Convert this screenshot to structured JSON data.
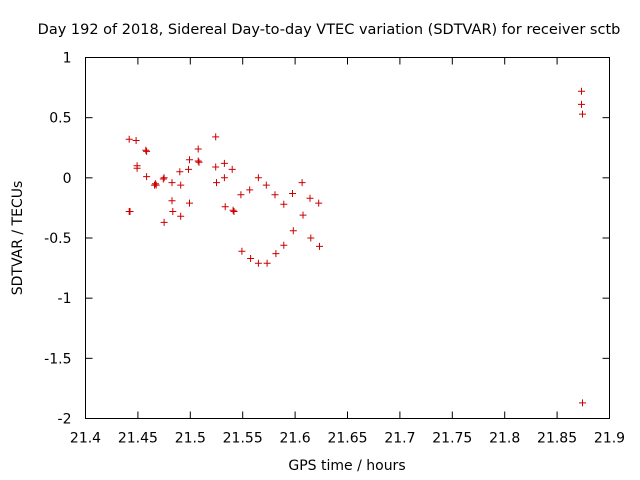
{
  "chart_data": {
    "type": "scatter",
    "title": "Day 192 of 2018, Sidereal Day-to-day VTEC variation (SDTVAR) for receiver sctb",
    "xlabel": "GPS time / hours",
    "ylabel": "SDTVAR / TECUs",
    "xlim": [
      21.4,
      21.9
    ],
    "ylim": [
      -2,
      1
    ],
    "xticks": [
      21.4,
      21.45,
      21.5,
      21.55,
      21.6,
      21.65,
      21.7,
      21.75,
      21.8,
      21.85,
      21.9
    ],
    "xtick_labels": [
      "21.4",
      "21.45",
      "21.5",
      "21.55",
      "21.6",
      "21.65",
      "21.7",
      "21.75",
      "21.8",
      "21.85",
      "21.9"
    ],
    "yticks": [
      1,
      0.5,
      0,
      -0.5,
      -1,
      -1.5,
      -2
    ],
    "ytick_labels": [
      "1",
      "0.5",
      "0",
      "-0.5",
      "-1",
      "-1.5",
      "-2"
    ],
    "grid": false,
    "marker": "+",
    "marker_color": "#cc0000",
    "points": [
      [
        21.4417,
        0.32
      ],
      [
        21.4417,
        -0.28
      ],
      [
        21.4425,
        -0.28
      ],
      [
        21.4483,
        0.31
      ],
      [
        21.4492,
        0.1
      ],
      [
        21.4492,
        0.08
      ],
      [
        21.4575,
        0.23
      ],
      [
        21.4583,
        0.22
      ],
      [
        21.4583,
        0.01
      ],
      [
        21.4658,
        -0.06
      ],
      [
        21.4667,
        -0.05
      ],
      [
        21.4675,
        -0.06
      ],
      [
        21.4742,
        -0.01
      ],
      [
        21.475,
        0.0
      ],
      [
        21.475,
        -0.37
      ],
      [
        21.4825,
        -0.04
      ],
      [
        21.4825,
        -0.19
      ],
      [
        21.4833,
        -0.28
      ],
      [
        21.49,
        0.05
      ],
      [
        21.4908,
        -0.06
      ],
      [
        21.4908,
        -0.32
      ],
      [
        21.4983,
        0.07
      ],
      [
        21.4992,
        0.15
      ],
      [
        21.4992,
        -0.21
      ],
      [
        21.5075,
        0.24
      ],
      [
        21.5075,
        0.14
      ],
      [
        21.5083,
        0.13
      ],
      [
        21.5242,
        0.34
      ],
      [
        21.5242,
        0.09
      ],
      [
        21.525,
        -0.04
      ],
      [
        21.5325,
        0.12
      ],
      [
        21.5325,
        0.0
      ],
      [
        21.5333,
        -0.24
      ],
      [
        21.54,
        0.07
      ],
      [
        21.5408,
        -0.27
      ],
      [
        21.5417,
        -0.28
      ],
      [
        21.5483,
        -0.14
      ],
      [
        21.5492,
        -0.61
      ],
      [
        21.5567,
        -0.1
      ],
      [
        21.5575,
        -0.67
      ],
      [
        21.565,
        0.0
      ],
      [
        21.565,
        -0.71
      ],
      [
        21.5725,
        -0.06
      ],
      [
        21.5733,
        -0.71
      ],
      [
        21.5808,
        -0.14
      ],
      [
        21.5817,
        -0.63
      ],
      [
        21.5892,
        -0.22
      ],
      [
        21.5892,
        -0.56
      ],
      [
        21.5975,
        -0.13
      ],
      [
        21.5983,
        -0.44
      ],
      [
        21.6067,
        -0.04
      ],
      [
        21.6075,
        -0.31
      ],
      [
        21.6142,
        -0.17
      ],
      [
        21.615,
        -0.5
      ],
      [
        21.6225,
        -0.21
      ],
      [
        21.6233,
        -0.57
      ],
      [
        21.8733,
        0.72
      ],
      [
        21.8733,
        0.61
      ],
      [
        21.8742,
        0.53
      ],
      [
        21.8742,
        -1.87
      ]
    ]
  }
}
